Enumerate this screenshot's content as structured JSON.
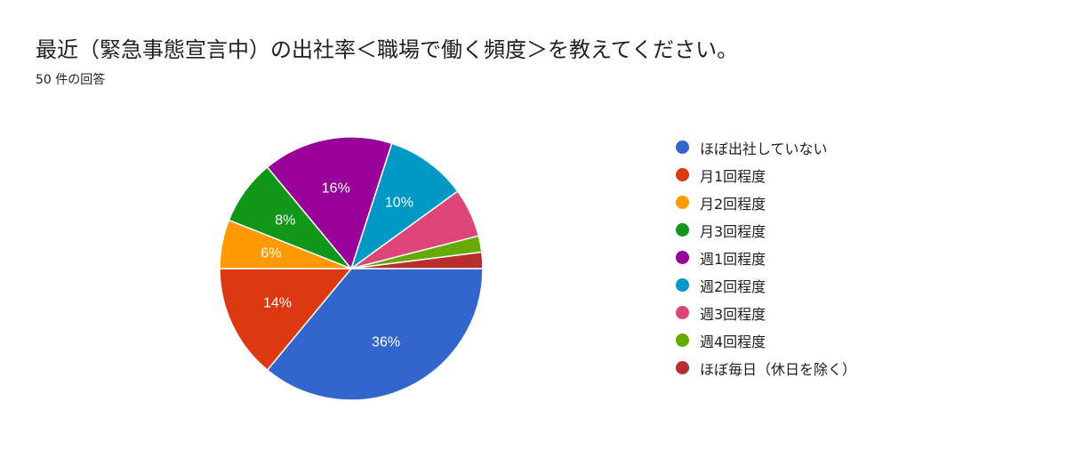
{
  "header": {
    "title": "最近（緊急事態宣言中）の出社率＜職場で働く頻度＞を教えてください。",
    "response_count": "50 件の回答"
  },
  "chart_data": {
    "type": "pie",
    "title": "最近（緊急事態宣言中）の出社率＜職場で働く頻度＞を教えてください。",
    "legend_position": "right",
    "start_direction": "east",
    "order": "clockwise",
    "slices": [
      {
        "label": "ほぼ出社していない",
        "value": 18,
        "percent": 36,
        "percent_label": "36%",
        "color": "#3366cc"
      },
      {
        "label": "月1回程度",
        "value": 7,
        "percent": 14,
        "percent_label": "14%",
        "color": "#dc3912"
      },
      {
        "label": "月2回程度",
        "value": 3,
        "percent": 6,
        "percent_label": "6%",
        "color": "#ff9900"
      },
      {
        "label": "月3回程度",
        "value": 4,
        "percent": 8,
        "percent_label": "8%",
        "color": "#109618"
      },
      {
        "label": "週1回程度",
        "value": 8,
        "percent": 16,
        "percent_label": "16%",
        "color": "#990099"
      },
      {
        "label": "週2回程度",
        "value": 5,
        "percent": 10,
        "percent_label": "10%",
        "color": "#0099c6"
      },
      {
        "label": "週3回程度",
        "value": 3,
        "percent": 6,
        "percent_label": "",
        "color": "#dd4477"
      },
      {
        "label": "週4回程度",
        "value": 1,
        "percent": 2,
        "percent_label": "",
        "color": "#66aa00"
      },
      {
        "label": "ほぼ毎日（休日を除く）",
        "value": 1,
        "percent": 2,
        "percent_label": "",
        "color": "#b82e2e"
      }
    ]
  }
}
